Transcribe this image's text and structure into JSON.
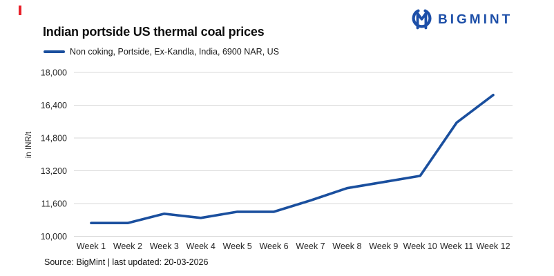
{
  "header": {
    "title": "Indian portside US thermal coal prices",
    "legend_label": "Non coking, Portside, Ex-Kandla, India, 6900 NAR, US"
  },
  "logo": {
    "text": "BIGMINT",
    "color": "#1d4fa8"
  },
  "marker": {
    "color": "#e8202a"
  },
  "footer": {
    "text": "Source: BigMint | last updated: 20-03-2026"
  },
  "chart_data": {
    "type": "line",
    "title": "Indian portside US thermal coal prices",
    "categories": [
      "Week 1",
      "Week 2",
      "Week 3",
      "Week 4",
      "Week 5",
      "Week 6",
      "Week 7",
      "Week 8",
      "Week 9",
      "Week 10",
      "Week 11",
      "Week 12"
    ],
    "series": [
      {
        "name": "Non coking, Portside, Ex-Kandla, India, 6900 NAR, US",
        "values": [
          10650,
          10650,
          11100,
          10900,
          11200,
          11200,
          11750,
          12350,
          12650,
          12950,
          15550,
          16900
        ]
      }
    ],
    "xlabel": "",
    "ylabel": "in INR/t",
    "ylim": [
      10000,
      18000
    ],
    "yticks": [
      10000,
      11600,
      13200,
      14800,
      16400,
      18000
    ],
    "ytick_labels": [
      "10,000",
      "11,600",
      "13,200",
      "14,800",
      "16,400",
      "18,000"
    ],
    "grid": true,
    "legend_position": "top-left",
    "line_color": "#1a4f9e",
    "grid_color": "#d9d9d9",
    "tick_label_color": "#262626"
  }
}
